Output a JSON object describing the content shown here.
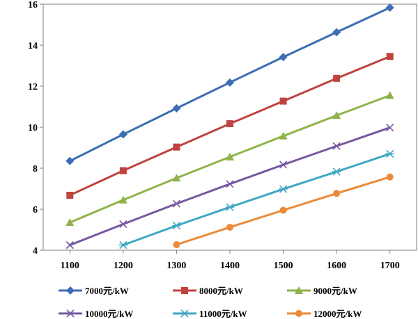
{
  "chart_data": {
    "type": "line",
    "title": "",
    "xlabel": "",
    "ylabel": "",
    "x": [
      1100,
      1200,
      1300,
      1400,
      1500,
      1600,
      1700
    ],
    "xticks": [
      "1100",
      "1200",
      "1300",
      "1400",
      "1500",
      "1600",
      "1700"
    ],
    "yticks": [
      "4",
      "6",
      "8",
      "10",
      "12",
      "14",
      "16"
    ],
    "xlim": [
      1050,
      1750
    ],
    "ylim": [
      4,
      16
    ],
    "grid": false,
    "legend_position": "bottom",
    "series": [
      {
        "name": "7000元/kW",
        "color": "#3d6db4",
        "marker": "diamond",
        "values": [
          8.35,
          9.65,
          10.92,
          12.18,
          13.42,
          14.63,
          15.83
        ]
      },
      {
        "name": "8000元/kW",
        "color": "#c0433f",
        "marker": "square",
        "values": [
          6.68,
          7.88,
          9.03,
          10.17,
          11.27,
          12.38,
          13.45
        ]
      },
      {
        "name": "9000元/kW",
        "color": "#8fb34a",
        "marker": "triangle",
        "values": [
          5.35,
          6.45,
          7.52,
          8.55,
          9.57,
          10.57,
          11.55
        ]
      },
      {
        "name": "10000元/kW",
        "color": "#7658a0",
        "marker": "x",
        "values": [
          4.25,
          5.27,
          6.27,
          7.23,
          8.17,
          9.08,
          9.98
        ]
      },
      {
        "name": "11000元/kW",
        "color": "#3fa7c2",
        "marker": "asterisk",
        "values": [
          null,
          4.25,
          5.2,
          6.1,
          6.98,
          7.83,
          8.7
        ]
      },
      {
        "name": "12000元/kW",
        "color": "#ec8a3a",
        "marker": "circle",
        "values": [
          null,
          null,
          4.27,
          5.12,
          5.95,
          6.77,
          7.57
        ]
      }
    ]
  }
}
